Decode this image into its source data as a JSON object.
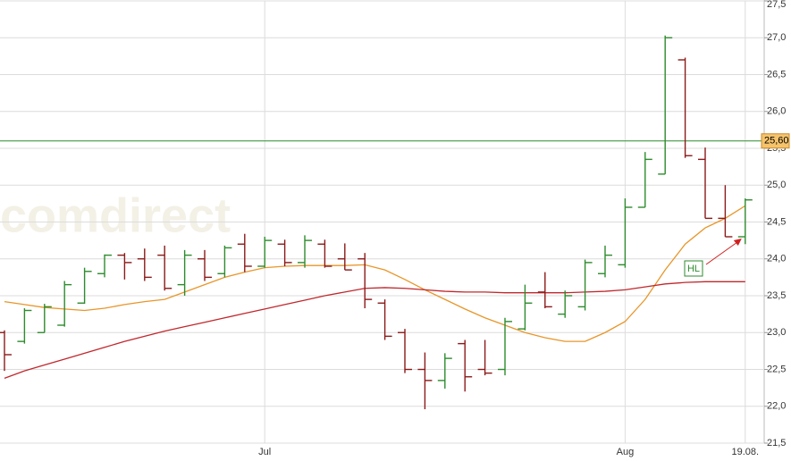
{
  "chart_data": {
    "type": "ohlc",
    "watermark": "comdirect",
    "categories": [
      null,
      null,
      null,
      null,
      null,
      null,
      null,
      null,
      null,
      null,
      null,
      null,
      null,
      "Jul",
      null,
      null,
      null,
      null,
      null,
      null,
      null,
      null,
      null,
      null,
      null,
      null,
      null,
      null,
      null,
      null,
      null,
      "Aug",
      null,
      null,
      null,
      null,
      null,
      "19.08."
    ],
    "open": [
      23.0,
      22.88,
      23.0,
      23.1,
      23.4,
      23.8,
      24.05,
      24.0,
      24.05,
      23.65,
      24.0,
      23.8,
      24.2,
      23.9,
      24.2,
      23.95,
      24.2,
      24.0,
      24.0,
      23.4,
      23.0,
      22.5,
      22.35,
      22.85,
      22.5,
      22.5,
      23.05,
      23.55,
      23.25,
      23.35,
      23.8,
      23.92,
      24.7,
      25.15,
      26.7,
      25.35,
      24.55,
      24.3
    ],
    "high": [
      23.03,
      23.33,
      23.39,
      23.7,
      23.88,
      24.06,
      24.08,
      24.14,
      24.18,
      24.12,
      24.12,
      24.18,
      24.34,
      24.3,
      24.26,
      24.32,
      24.26,
      24.21,
      24.08,
      23.45,
      23.05,
      22.73,
      22.72,
      22.9,
      22.9,
      23.2,
      23.65,
      23.82,
      23.57,
      23.99,
      24.18,
      24.82,
      25.45,
      27.03,
      26.73,
      25.51,
      25.0,
      24.82
    ],
    "low": [
      22.48,
      22.85,
      23.0,
      23.08,
      23.39,
      23.75,
      23.72,
      23.7,
      23.57,
      23.5,
      23.7,
      23.75,
      23.82,
      23.88,
      23.9,
      23.88,
      23.88,
      23.85,
      23.33,
      22.9,
      22.45,
      21.96,
      22.24,
      22.2,
      22.42,
      22.42,
      23.03,
      23.33,
      23.2,
      23.3,
      23.75,
      23.88,
      24.7,
      25.15,
      25.37,
      24.55,
      24.3,
      24.2
    ],
    "close": [
      22.7,
      23.3,
      23.35,
      23.65,
      23.83,
      24.05,
      23.95,
      23.75,
      23.6,
      24.05,
      23.75,
      24.15,
      23.9,
      24.25,
      23.95,
      24.25,
      23.9,
      23.85,
      23.45,
      22.95,
      22.5,
      22.35,
      22.65,
      22.4,
      22.45,
      23.15,
      23.4,
      23.35,
      23.5,
      23.95,
      24.05,
      24.7,
      25.35,
      27.0,
      25.4,
      24.55,
      24.3,
      24.8
    ],
    "up_color": "#2e8b2e",
    "down_color": "#8b1a1a",
    "lines": [
      {
        "color": "#e8962a",
        "values": [
          23.42,
          23.38,
          23.34,
          23.32,
          23.3,
          23.33,
          23.38,
          23.42,
          23.45,
          23.55,
          23.65,
          23.75,
          23.82,
          23.88,
          23.9,
          23.91,
          23.91,
          23.91,
          23.92,
          23.85,
          23.72,
          23.58,
          23.45,
          23.32,
          23.2,
          23.1,
          23.0,
          22.93,
          22.88,
          22.88,
          23.0,
          23.15,
          23.45,
          23.85,
          24.2,
          24.42,
          24.55,
          24.72
        ]
      },
      {
        "color": "#c0282d",
        "values": [
          22.38,
          22.48,
          22.56,
          22.64,
          22.72,
          22.8,
          22.88,
          22.95,
          23.02,
          23.08,
          23.14,
          23.2,
          23.26,
          23.32,
          23.38,
          23.44,
          23.5,
          23.55,
          23.6,
          23.61,
          23.6,
          23.58,
          23.56,
          23.55,
          23.55,
          23.54,
          23.54,
          23.54,
          23.54,
          23.55,
          23.56,
          23.58,
          23.62,
          23.66,
          23.68,
          23.69,
          23.69,
          23.69
        ]
      }
    ],
    "reference_line": {
      "value": 25.6,
      "label": "25,60",
      "color": "#2e8b2e"
    },
    "annotation": "HL",
    "ylim": [
      21.5,
      27.5
    ],
    "yticks": [
      {
        "value": 21.5,
        "label": "21,5"
      },
      {
        "value": 22,
        "label": "22,0"
      },
      {
        "value": 22.5,
        "label": "22,5"
      },
      {
        "value": 23,
        "label": "23,0"
      },
      {
        "value": 23.5,
        "label": "23,5"
      },
      {
        "value": 24,
        "label": "24,0"
      },
      {
        "value": 24.5,
        "label": "24,5"
      },
      {
        "value": 25,
        "label": "25,0"
      },
      {
        "value": 25.5,
        "label": "25,5"
      },
      {
        "value": 26,
        "label": "26,0"
      },
      {
        "value": 26.5,
        "label": "26,5"
      },
      {
        "value": 27,
        "label": "27,0"
      },
      {
        "value": 27.5,
        "label": "27,5"
      }
    ],
    "grid": true
  }
}
